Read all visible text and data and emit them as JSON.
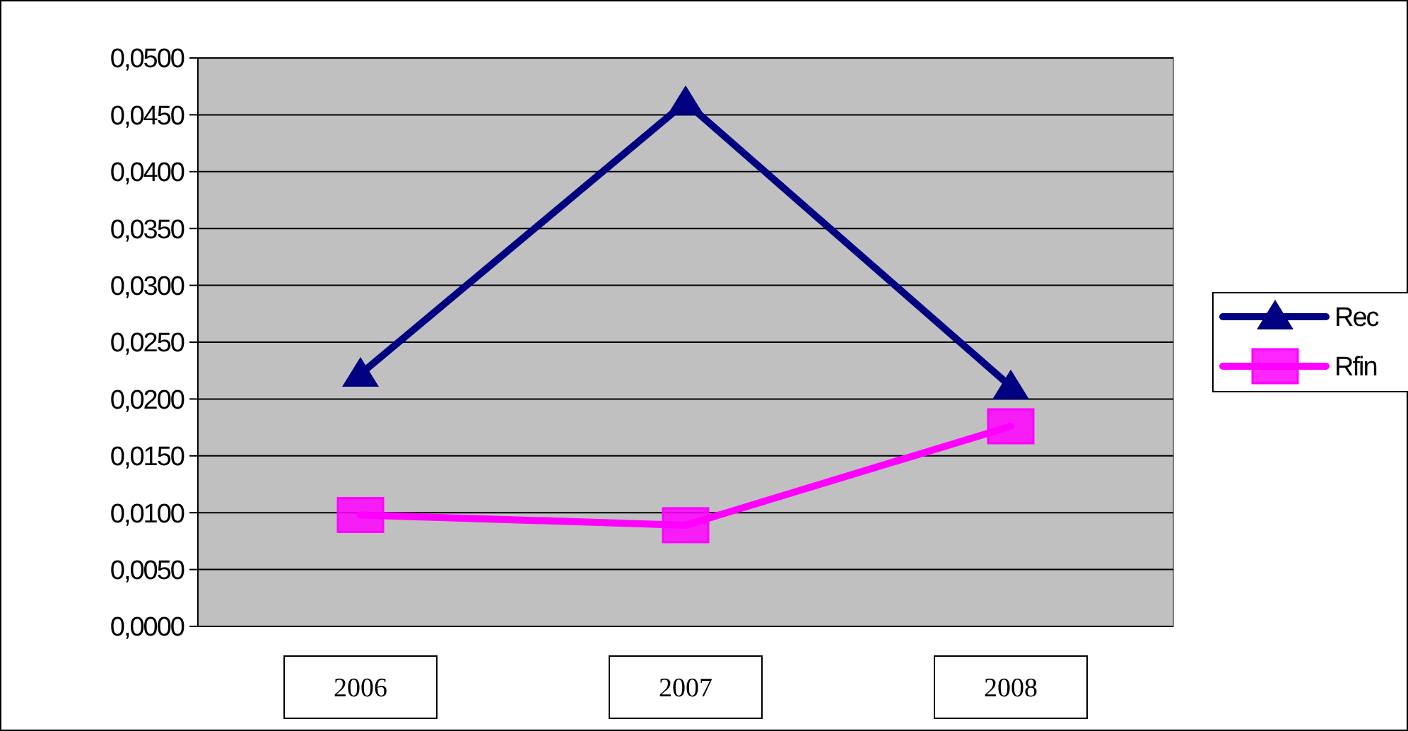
{
  "chart_data": {
    "type": "line",
    "categories": [
      "2006",
      "2007",
      "2008"
    ],
    "series": [
      {
        "name": "Rec",
        "color": "#000080",
        "marker": "triangle",
        "values": [
          0.0222,
          0.0461,
          0.0211
        ]
      },
      {
        "name": "Rfin",
        "color": "#ff00ff",
        "marker": "square",
        "values": [
          0.0098,
          0.0089,
          0.0176
        ]
      }
    ],
    "ylim": [
      0,
      0.05
    ],
    "yticks": [
      {
        "value": 0,
        "label": "0,0000"
      },
      {
        "value": 0.005,
        "label": "0,0050"
      },
      {
        "value": 0.01,
        "label": "0,0100"
      },
      {
        "value": 0.015,
        "label": "0,0150"
      },
      {
        "value": 0.02,
        "label": "0,0200"
      },
      {
        "value": 0.025,
        "label": "0,0250"
      },
      {
        "value": 0.03,
        "label": "0,0300"
      },
      {
        "value": 0.035,
        "label": "0,0350"
      },
      {
        "value": 0.04,
        "label": "0,0400"
      },
      {
        "value": 0.045,
        "label": "0,0450"
      },
      {
        "value": 0.05,
        "label": "0,0500"
      }
    ],
    "grid": "y",
    "legend": "right",
    "line_style": "solid"
  }
}
